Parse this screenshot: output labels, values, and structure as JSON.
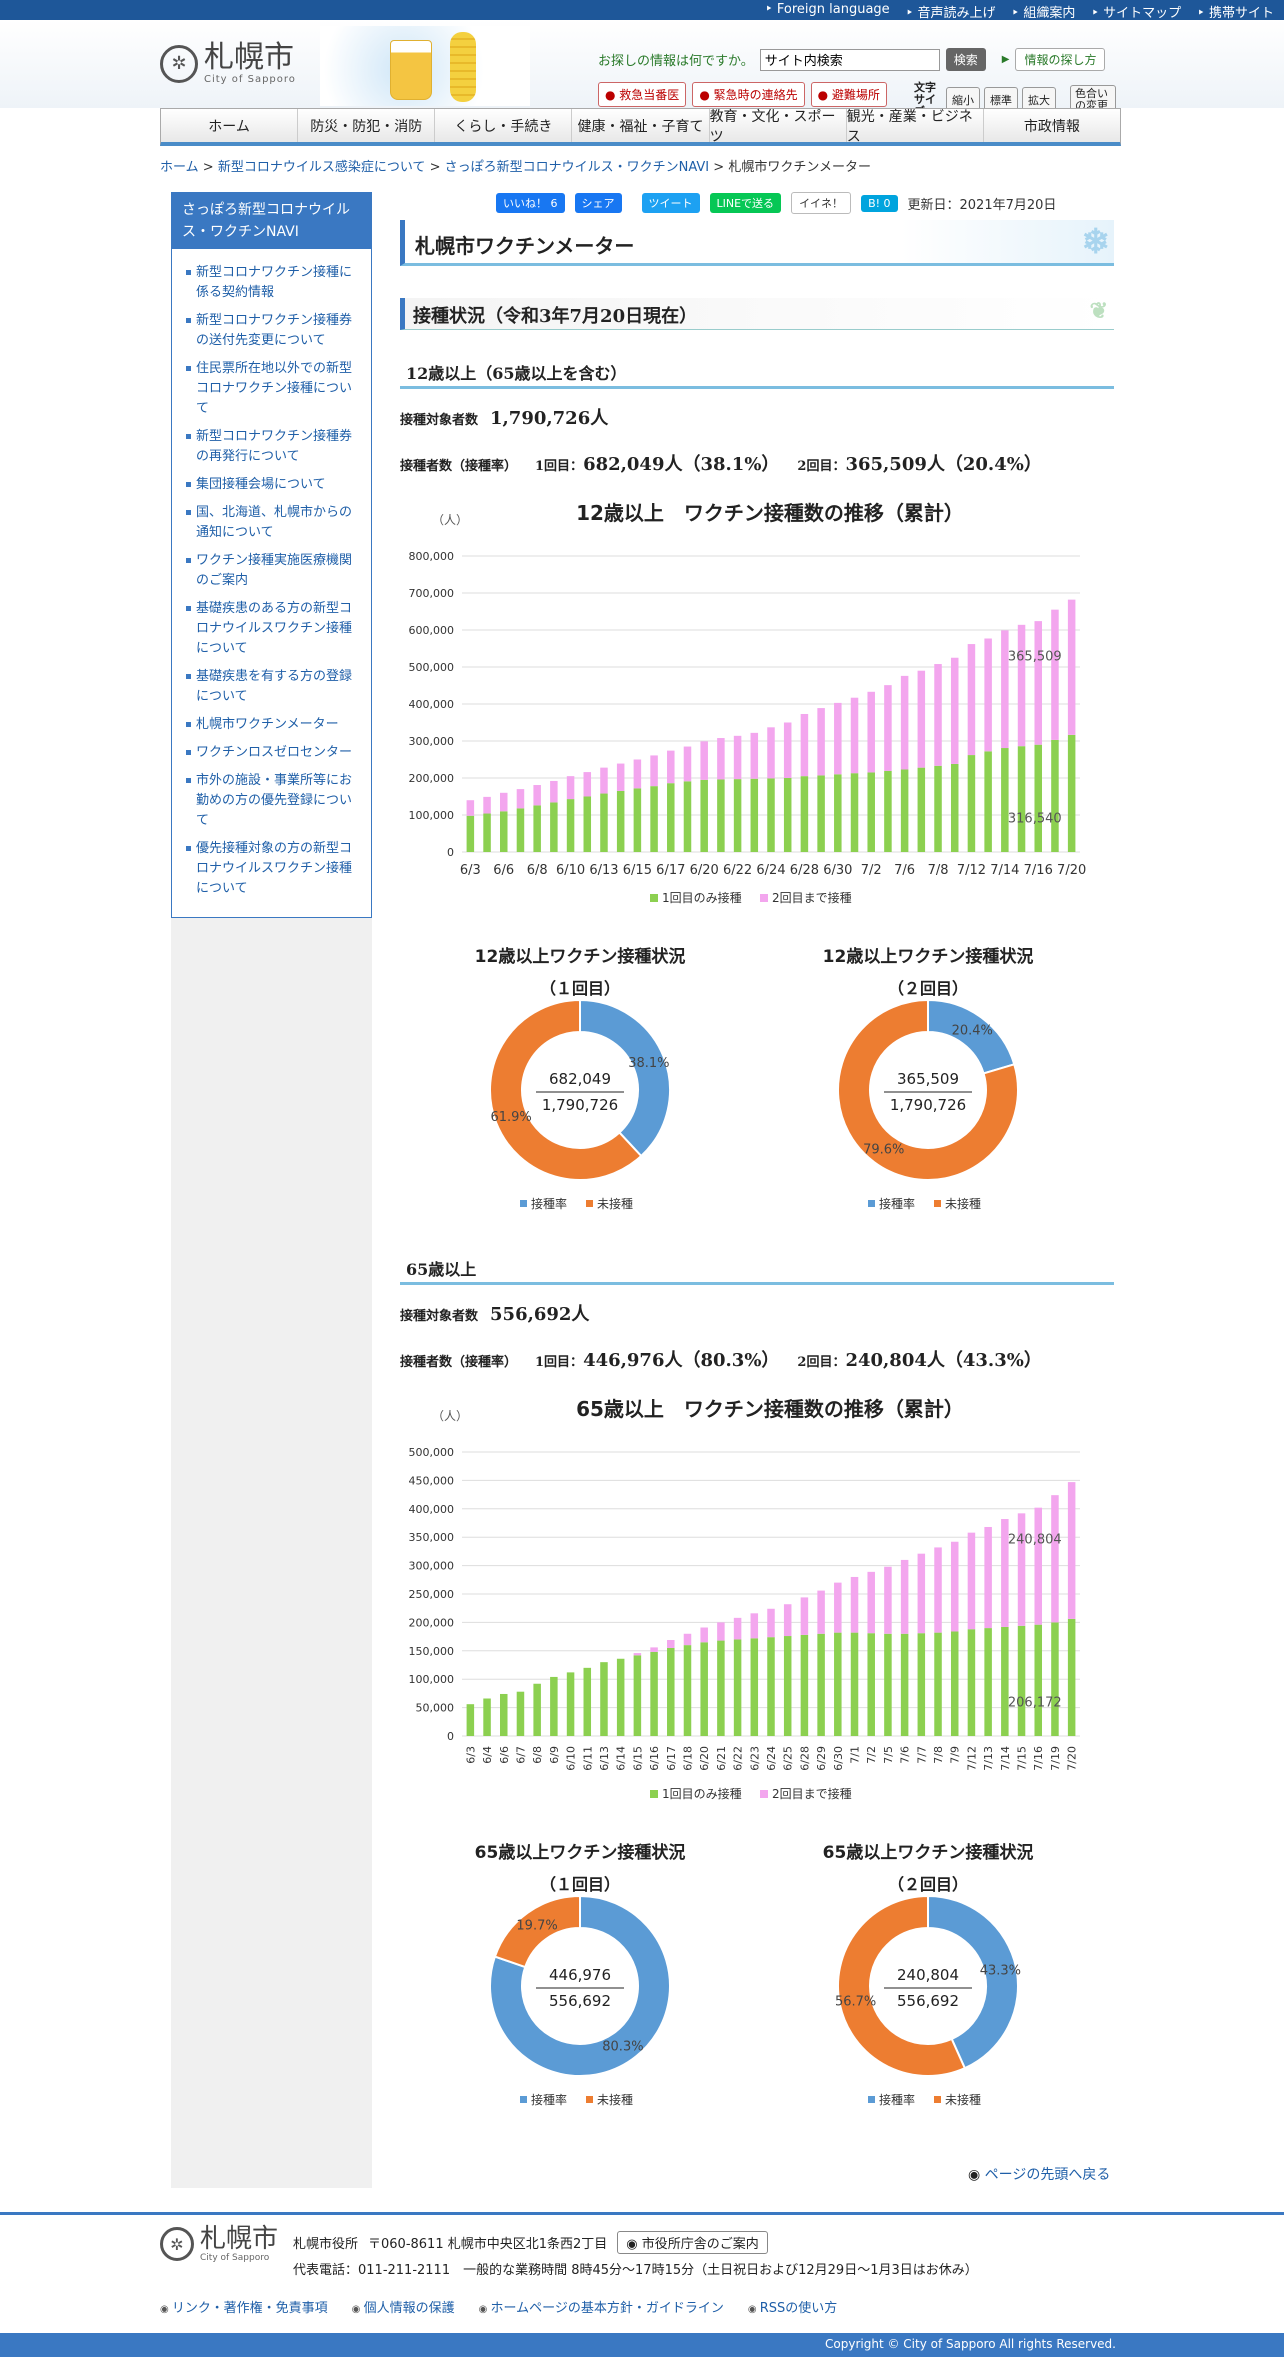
{
  "top_links": [
    "Foreign language",
    "音声読み上げ",
    "組織案内",
    "サイトマップ",
    "携帯サイト"
  ],
  "logo": {
    "name": "札幌市",
    "sub": "City of Sapporo"
  },
  "search": {
    "prompt": "お探しの情報は何ですか。",
    "value": "サイト内検索",
    "button": "検索",
    "howto": "情報の探し方"
  },
  "emergency": [
    "救急当番医",
    "緊急時の連絡先",
    "避難場所"
  ],
  "font_size": {
    "label": "文字サイズ",
    "small": "縮小",
    "normal": "標準",
    "large": "拡大",
    "color": "色合いの変更"
  },
  "gnav": [
    "ホーム",
    "防災・防犯・消防",
    "くらし・手続き",
    "健康・福祉・子育て",
    "教育・文化・スポーツ",
    "観光・産業・ビジネス",
    "市政情報"
  ],
  "breadcrumb": {
    "home": "ホーム",
    "b1": "新型コロナウイルス感染症について",
    "b2": "さっぽろ新型コロナウイルス・ワクチンNAVI",
    "current": "札幌市ワクチンメーター",
    "sep": ">"
  },
  "sidebar": {
    "title": "さっぽろ新型コロナウイルス・ワクチンNAVI",
    "items": [
      "新型コロナワクチン接種に係る契約情報",
      "新型コロナワクチン接種券の送付先変更について",
      "住民票所在地以外での新型コロナワクチン接種について",
      "新型コロナワクチン接種券の再発行について",
      "集団接種会場について",
      "国、北海道、札幌市からの通知について",
      "ワクチン接種実施医療機関のご案内",
      "基礎疾患のある方の新型コロナウイルスワクチン接種について",
      "基礎疾患を有する方の登録について",
      "札幌市ワクチンメーター",
      "ワクチンロスゼロセンター",
      "市外の施設・事業所等にお勤めの方の優先登録について",
      "優先接種対象の方の新型コロナウイルスワクチン接種について"
    ]
  },
  "share": {
    "like": "いいね！ 6",
    "share": "シェア",
    "tweet": "ツイート",
    "line": "LINEで送る",
    "iine": "イイネ！",
    "hatena": "B! 0",
    "updated": "更新日：2021年7月20日"
  },
  "page_title": "札幌市ワクチンメーター",
  "status_heading": "接種状況（令和3年7月20日現在）",
  "groups": [
    {
      "heading": "12歳以上（65歳以上を含む）",
      "target_label": "接種対象者数",
      "target": "1,790,726人",
      "vacc_label": "接種者数（接種率）",
      "dose1_label": "1回目：",
      "dose1": "682,049人（38.1%）",
      "dose2_label": "2回目：",
      "dose2": "365,509人（20.4%）"
    },
    {
      "heading": "65歳以上",
      "target_label": "接種対象者数",
      "target": "556,692人",
      "vacc_label": "接種者数（接種率）",
      "dose1_label": "1回目：",
      "dose1": "446,976人（80.3%）",
      "dose2_label": "2回目：",
      "dose2": "240,804人（43.3%）"
    }
  ],
  "chart_data": [
    {
      "type": "bar",
      "stacked": true,
      "title": "12歳以上　ワクチン接種数の推移（累計）",
      "ylabel": "（人）",
      "ylim": [
        0,
        800000
      ],
      "yticks": [
        "0",
        "100,000",
        "200,000",
        "300,000",
        "400,000",
        "500,000",
        "600,000",
        "700,000",
        "800,000"
      ],
      "categories": [
        "6/3",
        "6/4",
        "6/6",
        "6/7",
        "6/8",
        "6/9",
        "6/10",
        "6/11",
        "6/13",
        "6/14",
        "6/15",
        "6/16",
        "6/17",
        "6/18",
        "6/20",
        "6/21",
        "6/22",
        "6/23",
        "6/24",
        "6/25",
        "6/28",
        "6/29",
        "6/30",
        "7/1",
        "7/2",
        "7/5",
        "7/6",
        "7/7",
        "7/8",
        "7/9",
        "7/12",
        "7/13",
        "7/14",
        "7/15",
        "7/16",
        "7/19",
        "7/20"
      ],
      "xtick_labels": [
        "6/3",
        "6/6",
        "6/8",
        "6/10",
        "6/13",
        "6/15",
        "6/17",
        "6/20",
        "6/22",
        "6/24",
        "6/28",
        "6/30",
        "7/2",
        "7/6",
        "7/8",
        "7/12",
        "7/14",
        "7/16",
        "7/20"
      ],
      "series": [
        {
          "name": "1回目のみ接種",
          "color": "#8cd050",
          "values": [
            98000,
            104000,
            110000,
            118000,
            126000,
            134000,
            143000,
            150000,
            158000,
            165000,
            172000,
            178000,
            186000,
            191000,
            195000,
            196000,
            197000,
            198000,
            199000,
            200000,
            205000,
            207000,
            210000,
            213000,
            215000,
            219000,
            223000,
            228000,
            233000,
            238000,
            262000,
            272000,
            281000,
            286000,
            290000,
            303000,
            316540
          ]
        },
        {
          "name": "2回目まで接種",
          "color": "#f3a6ee",
          "values": [
            42000,
            45000,
            50000,
            52000,
            55000,
            58000,
            62000,
            66000,
            70000,
            74000,
            78000,
            83000,
            88000,
            94000,
            104000,
            112000,
            117000,
            124000,
            138000,
            150000,
            168000,
            182000,
            193000,
            204000,
            218000,
            232000,
            253000,
            262000,
            275000,
            287000,
            300000,
            305000,
            318000,
            328000,
            334000,
            352000,
            365509
          ]
        }
      ],
      "data_labels": [
        "365,509",
        "316,540"
      ],
      "legend": "bottom"
    },
    {
      "type": "pie",
      "donut": true,
      "title": "12歳以上ワクチン接種状況",
      "subtitle": "（１回目）",
      "center_top": "682,049",
      "center_bottom": "1,790,726",
      "slices": [
        {
          "name": "接種率",
          "value": 38.1,
          "label": "38.1%",
          "color": "#5b9bd5"
        },
        {
          "name": "未接種",
          "value": 61.9,
          "label": "61.9%",
          "color": "#ed7d31"
        }
      ],
      "legend": "bottom"
    },
    {
      "type": "pie",
      "donut": true,
      "title": "12歳以上ワクチン接種状況",
      "subtitle": "（２回目）",
      "center_top": "365,509",
      "center_bottom": "1,790,726",
      "slices": [
        {
          "name": "接種率",
          "value": 20.4,
          "label": "20.4%",
          "color": "#5b9bd5"
        },
        {
          "name": "未接種",
          "value": 79.6,
          "label": "79.6%",
          "color": "#ed7d31"
        }
      ],
      "legend": "bottom"
    },
    {
      "type": "bar",
      "stacked": true,
      "title": "65歳以上　ワクチン接種数の推移（累計）",
      "ylabel": "（人）",
      "ylim": [
        0,
        500000
      ],
      "yticks": [
        "0",
        "50,000",
        "100,000",
        "150,000",
        "200,000",
        "250,000",
        "300,000",
        "350,000",
        "400,000",
        "450,000",
        "500,000"
      ],
      "categories": [
        "6/3",
        "6/4",
        "6/6",
        "6/7",
        "6/8",
        "6/9",
        "6/10",
        "6/11",
        "6/13",
        "6/14",
        "6/15",
        "6/16",
        "6/17",
        "6/18",
        "6/20",
        "6/21",
        "6/22",
        "6/23",
        "6/24",
        "6/25",
        "6/28",
        "6/29",
        "6/30",
        "7/1",
        "7/2",
        "7/5",
        "7/6",
        "7/7",
        "7/8",
        "7/9",
        "7/12",
        "7/13",
        "7/14",
        "7/15",
        "7/16",
        "7/19",
        "7/20"
      ],
      "xtick_labels": [
        "6/3",
        "6/4",
        "6/6",
        "6/7",
        "6/8",
        "6/9",
        "6/10",
        "6/11",
        "6/13",
        "6/14",
        "6/15",
        "6/16",
        "6/17",
        "6/18",
        "6/20",
        "6/21",
        "6/22",
        "6/23",
        "6/24",
        "6/25",
        "6/28",
        "6/29",
        "6/30",
        "7/1",
        "7/2",
        "7/5",
        "7/6",
        "7/7",
        "7/8",
        "7/9",
        "7/12",
        "7/13",
        "7/14",
        "7/15",
        "7/16",
        "7/19",
        "7/20"
      ],
      "series": [
        {
          "name": "1回目のみ接種",
          "color": "#8cd050",
          "values": [
            56000,
            66000,
            74000,
            78000,
            92000,
            104000,
            112000,
            120000,
            130000,
            136000,
            142000,
            148000,
            155000,
            160000,
            165000,
            168000,
            170000,
            172000,
            174000,
            176000,
            178000,
            180000,
            182000,
            182000,
            181000,
            180000,
            180000,
            181000,
            182000,
            184000,
            188000,
            190000,
            192000,
            194000,
            196000,
            200000,
            206172
          ]
        },
        {
          "name": "2回目まで接種",
          "color": "#f3a6ee",
          "values": [
            0,
            0,
            0,
            0,
            0,
            0,
            0,
            0,
            0,
            0,
            4000,
            8000,
            14000,
            20000,
            26000,
            32000,
            38000,
            44000,
            50000,
            56000,
            66000,
            76000,
            88000,
            98000,
            108000,
            118000,
            130000,
            140000,
            150000,
            158000,
            170000,
            178000,
            190000,
            198000,
            206000,
            224000,
            240804
          ]
        }
      ],
      "data_labels": [
        "240,804",
        "206,172"
      ],
      "legend": "bottom"
    },
    {
      "type": "pie",
      "donut": true,
      "title": "65歳以上ワクチン接種状況",
      "subtitle": "（１回目）",
      "center_top": "446,976",
      "center_bottom": "556,692",
      "slices": [
        {
          "name": "接種率",
          "value": 80.3,
          "label": "80.3%",
          "color": "#5b9bd5"
        },
        {
          "name": "未接種",
          "value": 19.7,
          "label": "19.7%",
          "color": "#ed7d31"
        }
      ],
      "legend": "bottom"
    },
    {
      "type": "pie",
      "donut": true,
      "title": "65歳以上ワクチン接種状況",
      "subtitle": "（２回目）",
      "center_top": "240,804",
      "center_bottom": "556,692",
      "slices": [
        {
          "name": "接種率",
          "value": 43.3,
          "label": "43.3%",
          "color": "#5b9bd5"
        },
        {
          "name": "未接種",
          "value": 56.7,
          "label": "56.7%",
          "color": "#ed7d31"
        }
      ],
      "legend": "bottom"
    }
  ],
  "to_top": "ページの先頭へ戻る",
  "footer": {
    "office": "札幌市役所",
    "address": "〒060-8611 札幌市中央区北1条西2丁目",
    "guide_button": "市役所庁舎のご案内",
    "phone": "代表電話：011-211-2111　一般的な業務時間 8時45分～17時15分（土日祝日および12月29日～1月3日はお休み）",
    "links": [
      "リンク・著作権・免責事項",
      "個人情報の保護",
      "ホームページの基本方針・ガイドライン",
      "RSSの使い方"
    ],
    "copyright": "Copyright © City of Sapporo All rights Reserved."
  }
}
